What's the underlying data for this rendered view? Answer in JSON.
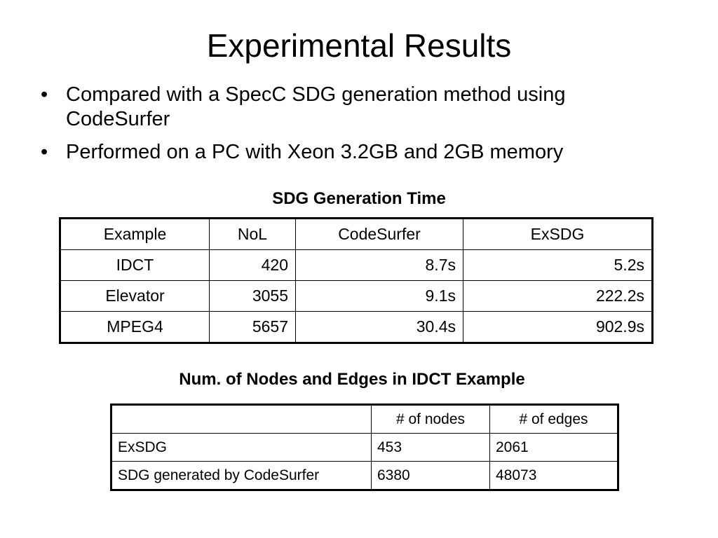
{
  "title": "Experimental Results",
  "bullets": [
    "Compared with a SpecC SDG generation method using CodeSurfer",
    "Performed on a PC with Xeon 3.2GB and 2GB memory"
  ],
  "table1": {
    "caption": "SDG Generation Time",
    "header": [
      "Example",
      "NoL",
      "CodeSurfer",
      "ExSDG"
    ],
    "rows": [
      [
        "IDCT",
        "420",
        "8.7s",
        "5.2s"
      ],
      [
        "Elevator",
        "3055",
        "9.1s",
        "222.2s"
      ],
      [
        "MPEG4",
        "5657",
        "30.4s",
        "902.9s"
      ]
    ]
  },
  "table2": {
    "caption": "Num. of Nodes and Edges in IDCT Example",
    "header": [
      "# of nodes",
      "# of edges"
    ],
    "rows": [
      [
        "ExSDG",
        "453",
        "2061"
      ],
      [
        "SDG generated by CodeSurfer",
        "6380",
        "48073"
      ]
    ]
  }
}
